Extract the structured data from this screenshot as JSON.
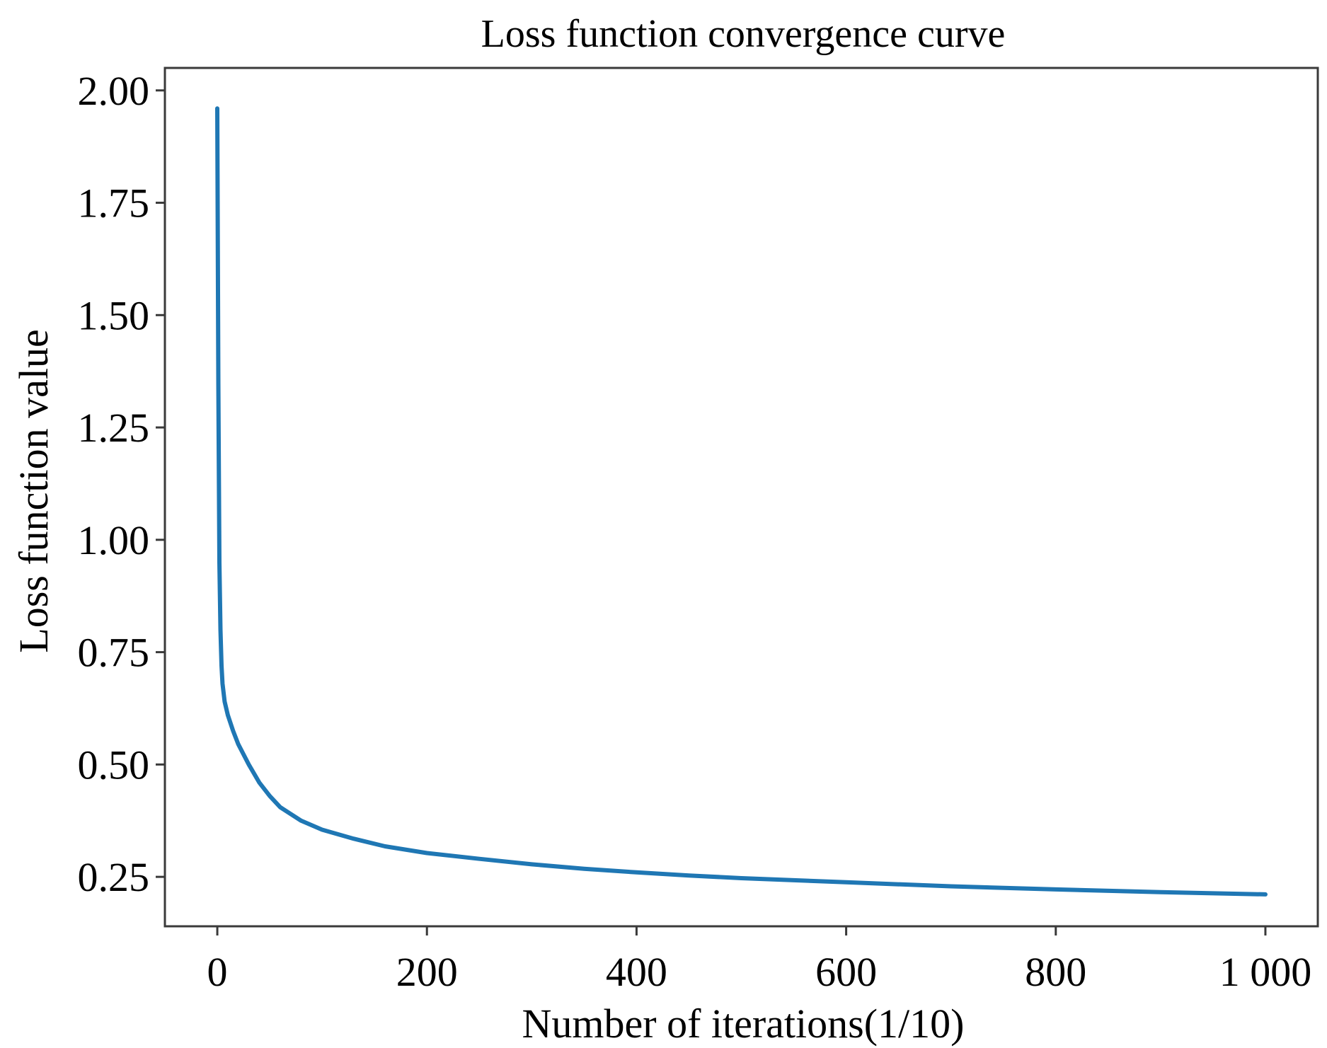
{
  "chart_data": {
    "type": "line",
    "title": "Loss function convergence curve",
    "xlabel": "Number of iterations(1/10)",
    "ylabel": "Loss function value",
    "xlim": [
      -50,
      1050
    ],
    "ylim": [
      0.14,
      2.05
    ],
    "xticks": [
      0,
      200,
      400,
      600,
      800,
      1000
    ],
    "xtick_labels": [
      "0",
      "200",
      "400",
      "600",
      "800",
      "1 000"
    ],
    "yticks": [
      0.25,
      0.5,
      0.75,
      1.0,
      1.25,
      1.5,
      1.75,
      2.0
    ],
    "ytick_labels": [
      "0.25",
      "0.50",
      "0.75",
      "1.00",
      "1.25",
      "1.50",
      "1.75",
      "2.00"
    ],
    "grid": false,
    "series": [
      {
        "color": "#1f77b4",
        "x": [
          0,
          1,
          2,
          3,
          4,
          5,
          7,
          10,
          15,
          20,
          30,
          40,
          50,
          60,
          80,
          100,
          130,
          160,
          200,
          250,
          300,
          350,
          400,
          450,
          500,
          600,
          700,
          800,
          900,
          1000
        ],
        "y": [
          1.96,
          1.35,
          0.95,
          0.8,
          0.72,
          0.68,
          0.64,
          0.61,
          0.575,
          0.545,
          0.5,
          0.46,
          0.43,
          0.405,
          0.375,
          0.355,
          0.335,
          0.318,
          0.303,
          0.29,
          0.278,
          0.268,
          0.26,
          0.253,
          0.247,
          0.238,
          0.229,
          0.222,
          0.216,
          0.211
        ]
      }
    ]
  }
}
